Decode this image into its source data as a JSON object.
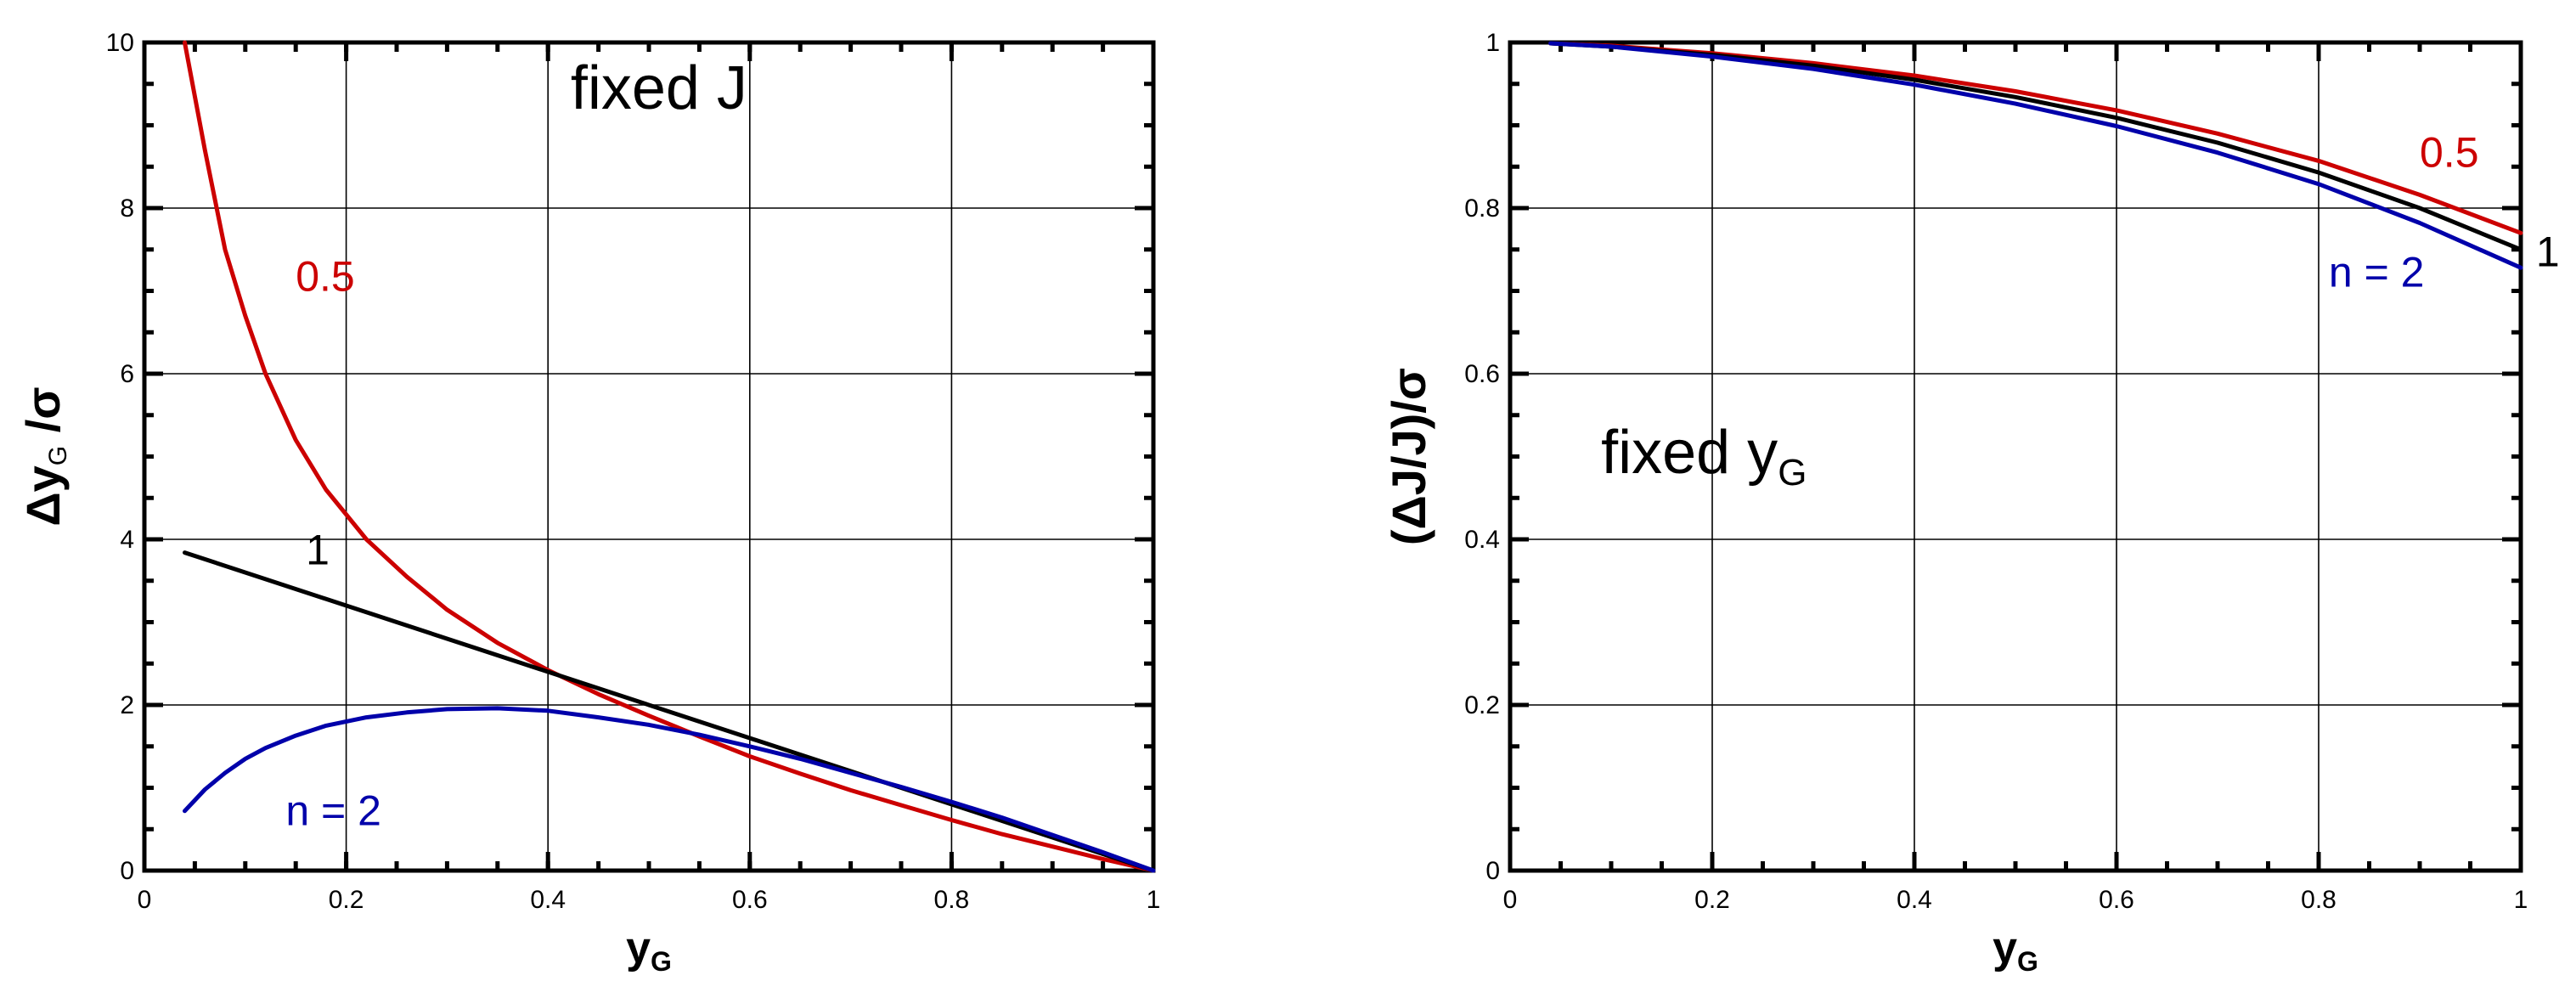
{
  "chart_data": [
    {
      "type": "line",
      "title": "",
      "xlabel": "y",
      "xlabel_sub": "G",
      "ylabel": "Δy",
      "ylabel_sub": "G",
      "ylabel_tail": " /σ",
      "xlim": [
        0,
        1
      ],
      "ylim": [
        0,
        10
      ],
      "xticks": [
        0,
        0.2,
        0.4,
        0.6,
        0.8,
        1
      ],
      "xtick_labels": [
        "0",
        "0.2",
        "0.4",
        "0.6",
        "0.8",
        "1"
      ],
      "yticks": [
        0,
        2,
        4,
        6,
        8,
        10
      ],
      "ytick_labels": [
        "0",
        "2",
        "4",
        "6",
        "8",
        "10"
      ],
      "grid": true,
      "annotation": {
        "text": "fixed J",
        "x": 0.51,
        "y": 9.2
      },
      "series": [
        {
          "label": "0.5",
          "color": "#cc0000",
          "label_pos": {
            "x": 0.15,
            "y": 7.0
          },
          "x": [
            0.04,
            0.06,
            0.08,
            0.1,
            0.12,
            0.15,
            0.18,
            0.22,
            0.26,
            0.3,
            0.35,
            0.4,
            0.45,
            0.5,
            0.55,
            0.6,
            0.65,
            0.7,
            0.75,
            0.8,
            0.85,
            0.9,
            0.95,
            1.0
          ],
          "y": [
            10.0,
            8.7,
            7.5,
            6.7,
            6.0,
            5.2,
            4.6,
            4.0,
            3.55,
            3.15,
            2.75,
            2.42,
            2.13,
            1.87,
            1.62,
            1.38,
            1.17,
            0.97,
            0.79,
            0.61,
            0.44,
            0.29,
            0.14,
            0.0
          ]
        },
        {
          "label": "1",
          "color": "#000000",
          "label_pos": {
            "x": 0.16,
            "y": 3.7
          },
          "x": [
            0.04,
            1.0
          ],
          "y": [
            3.84,
            0.0
          ]
        },
        {
          "label": "n = 2",
          "color": "#0000aa",
          "label_pos": {
            "x": 0.14,
            "y": 0.55
          },
          "x": [
            0.04,
            0.06,
            0.08,
            0.1,
            0.12,
            0.15,
            0.18,
            0.22,
            0.26,
            0.3,
            0.35,
            0.4,
            0.45,
            0.5,
            0.55,
            0.6,
            0.65,
            0.7,
            0.75,
            0.8,
            0.85,
            0.9,
            0.95,
            1.0
          ],
          "y": [
            0.72,
            0.98,
            1.18,
            1.35,
            1.48,
            1.63,
            1.75,
            1.85,
            1.91,
            1.95,
            1.96,
            1.93,
            1.85,
            1.76,
            1.64,
            1.5,
            1.35,
            1.18,
            1.01,
            0.83,
            0.64,
            0.43,
            0.22,
            0.0
          ]
        }
      ]
    },
    {
      "type": "line",
      "title": "",
      "xlabel": "y",
      "xlabel_sub": "G",
      "ylabel": "(ΔJ/J)/σ",
      "xlim": [
        0,
        1
      ],
      "ylim": [
        0,
        1
      ],
      "xticks": [
        0,
        0.2,
        0.4,
        0.6,
        0.8,
        1
      ],
      "xtick_labels": [
        "0",
        "0.2",
        "0.4",
        "0.6",
        "0.8",
        "1"
      ],
      "yticks": [
        0,
        0.2,
        0.4,
        0.6,
        0.8,
        1
      ],
      "ytick_labels": [
        "0",
        "0.2",
        "0.4",
        "0.6",
        "0.8",
        "1"
      ],
      "grid": true,
      "annotation": {
        "text": "fixed y",
        "sub": "G",
        "x": 0.09,
        "y": 0.48
      },
      "series": [
        {
          "label": "0.5",
          "color": "#cc0000",
          "label_pos": {
            "x": 0.9,
            "y": 0.85
          },
          "x": [
            0.04,
            0.1,
            0.2,
            0.3,
            0.4,
            0.5,
            0.6,
            0.7,
            0.8,
            0.9,
            1.0
          ],
          "y": [
            0.999,
            0.996,
            0.987,
            0.975,
            0.96,
            0.941,
            0.918,
            0.89,
            0.857,
            0.816,
            0.77
          ]
        },
        {
          "label": "1",
          "color": "#000000",
          "label_pos": {
            "x": 1.015,
            "y": 0.73
          },
          "x": [
            0.04,
            0.1,
            0.2,
            0.3,
            0.4,
            0.5,
            0.6,
            0.7,
            0.8,
            0.9,
            1.0
          ],
          "y": [
            0.999,
            0.995,
            0.985,
            0.972,
            0.955,
            0.934,
            0.909,
            0.879,
            0.843,
            0.8,
            0.75
          ]
        },
        {
          "label": "n = 2",
          "color": "#0000aa",
          "label_pos": {
            "x": 0.81,
            "y": 0.705
          },
          "x": [
            0.04,
            0.1,
            0.2,
            0.3,
            0.4,
            0.5,
            0.6,
            0.7,
            0.8,
            0.9,
            1.0
          ],
          "y": [
            0.999,
            0.995,
            0.983,
            0.968,
            0.949,
            0.926,
            0.899,
            0.867,
            0.829,
            0.782,
            0.728
          ]
        }
      ]
    }
  ]
}
